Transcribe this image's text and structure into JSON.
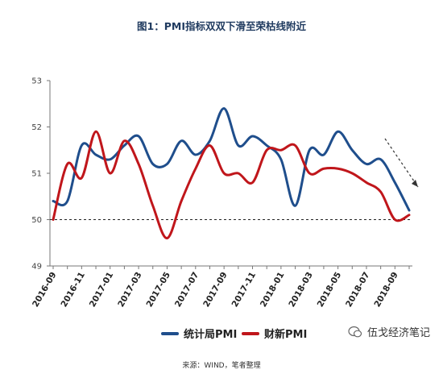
{
  "title": "图1：PMI指标双双下滑至荣枯线附近",
  "source": "来源：WIND，笔者整理",
  "watermark": "伍戈经济笔记",
  "colors": {
    "series1": "#1f4e8c",
    "series2": "#c0161b",
    "reference": "#222222",
    "arrow": "#333333"
  },
  "chart_data": {
    "type": "line",
    "title": "图1：PMI指标双双下滑至荣枯线附近",
    "xlabel": "",
    "ylabel": "",
    "ylim": [
      49,
      53
    ],
    "yticks": [
      49,
      50,
      51,
      52,
      53
    ],
    "grid": false,
    "legend": "bottom",
    "x": [
      "2016-09",
      "2016-10",
      "2016-11",
      "2016-12",
      "2017-01",
      "2017-02",
      "2017-03",
      "2017-04",
      "2017-05",
      "2017-06",
      "2017-07",
      "2017-08",
      "2017-09",
      "2017-10",
      "2017-11",
      "2017-12",
      "2018-01",
      "2018-02",
      "2018-03",
      "2018-04",
      "2018-05",
      "2018-06",
      "2018-07",
      "2018-08",
      "2018-09",
      "2018-10"
    ],
    "xtick_labels": [
      "2016-09",
      "2016-11",
      "2017-01",
      "2017-03",
      "2017-05",
      "2017-07",
      "2017-09",
      "2017-11",
      "2018-01",
      "2018-03",
      "2018-05",
      "2018-07",
      "2018-09"
    ],
    "reference_line": 50,
    "series": [
      {
        "name": "统计局PMI",
        "values": [
          50.4,
          50.4,
          51.6,
          51.4,
          51.3,
          51.6,
          51.8,
          51.2,
          51.2,
          51.7,
          51.4,
          51.7,
          52.4,
          51.6,
          51.8,
          51.6,
          51.3,
          50.3,
          51.5,
          51.4,
          51.9,
          51.5,
          51.2,
          51.3,
          50.8,
          50.2
        ]
      },
      {
        "name": "财新PMI",
        "values": [
          50.0,
          51.2,
          50.9,
          51.9,
          51.0,
          51.7,
          51.2,
          50.3,
          49.6,
          50.4,
          51.1,
          51.6,
          51.0,
          51.0,
          50.8,
          51.5,
          51.5,
          51.6,
          51.0,
          51.1,
          51.1,
          51.0,
          50.8,
          50.6,
          50.0,
          50.1
        ]
      }
    ]
  }
}
